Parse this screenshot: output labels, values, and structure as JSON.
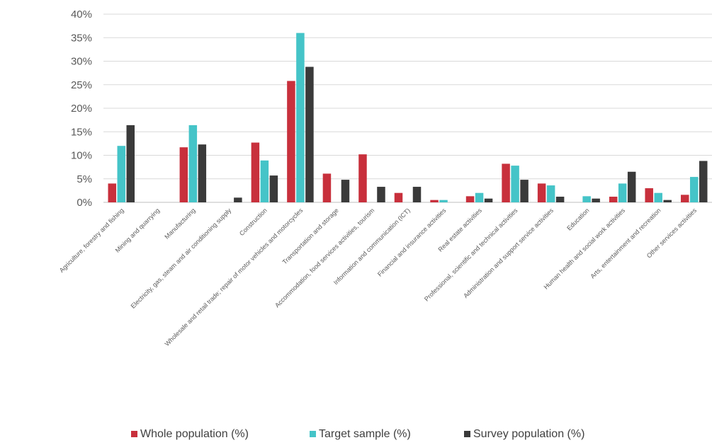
{
  "chart_data": {
    "type": "bar",
    "ylim": [
      0,
      40
    ],
    "yticks": [
      "0%",
      "5%",
      "10%",
      "15%",
      "20%",
      "25%",
      "30%",
      "35%",
      "40%"
    ],
    "grid": true,
    "legend_position": "bottom",
    "categories": [
      "Agriculture, forestry and fishing",
      "Mining and quarrying",
      "Manufacturing",
      "Electricity, gas, steam and air conditioning  supply",
      "Construction",
      "Wholesale and retail trade; repair of motor vehicles and motorcycles",
      "Transportation and storage",
      "Accommodation, food services activities, tourism",
      "Information and communication (ICT)",
      "Financial and insurance  activities",
      "Real estate activities",
      "Professional, scientific and technical activities",
      "Administration and support  service activities",
      "Education",
      "Human health and social work activities",
      "Arts, entertainment and recreation",
      "Other services activities"
    ],
    "series": [
      {
        "name": "Whole population (%)",
        "color": "#c8303c",
        "values": [
          4,
          0,
          11.7,
          0,
          12.7,
          25.8,
          6.1,
          10.2,
          2,
          0.5,
          1.3,
          8.2,
          4,
          0,
          1.2,
          3,
          1.6
        ]
      },
      {
        "name": "Target sample (%)",
        "color": "#45c4c8",
        "values": [
          12,
          0,
          16.4,
          0,
          8.9,
          36,
          0,
          0,
          0,
          0.5,
          2,
          7.8,
          3.6,
          1.3,
          4,
          2,
          5.4
        ]
      },
      {
        "name": "Survey population (%)",
        "color": "#3a3a3a",
        "values": [
          16.4,
          0,
          12.3,
          1,
          5.7,
          28.8,
          4.8,
          3.3,
          3.3,
          0,
          0.8,
          4.8,
          1.2,
          0.8,
          6.5,
          0.5,
          8.8
        ]
      }
    ]
  }
}
